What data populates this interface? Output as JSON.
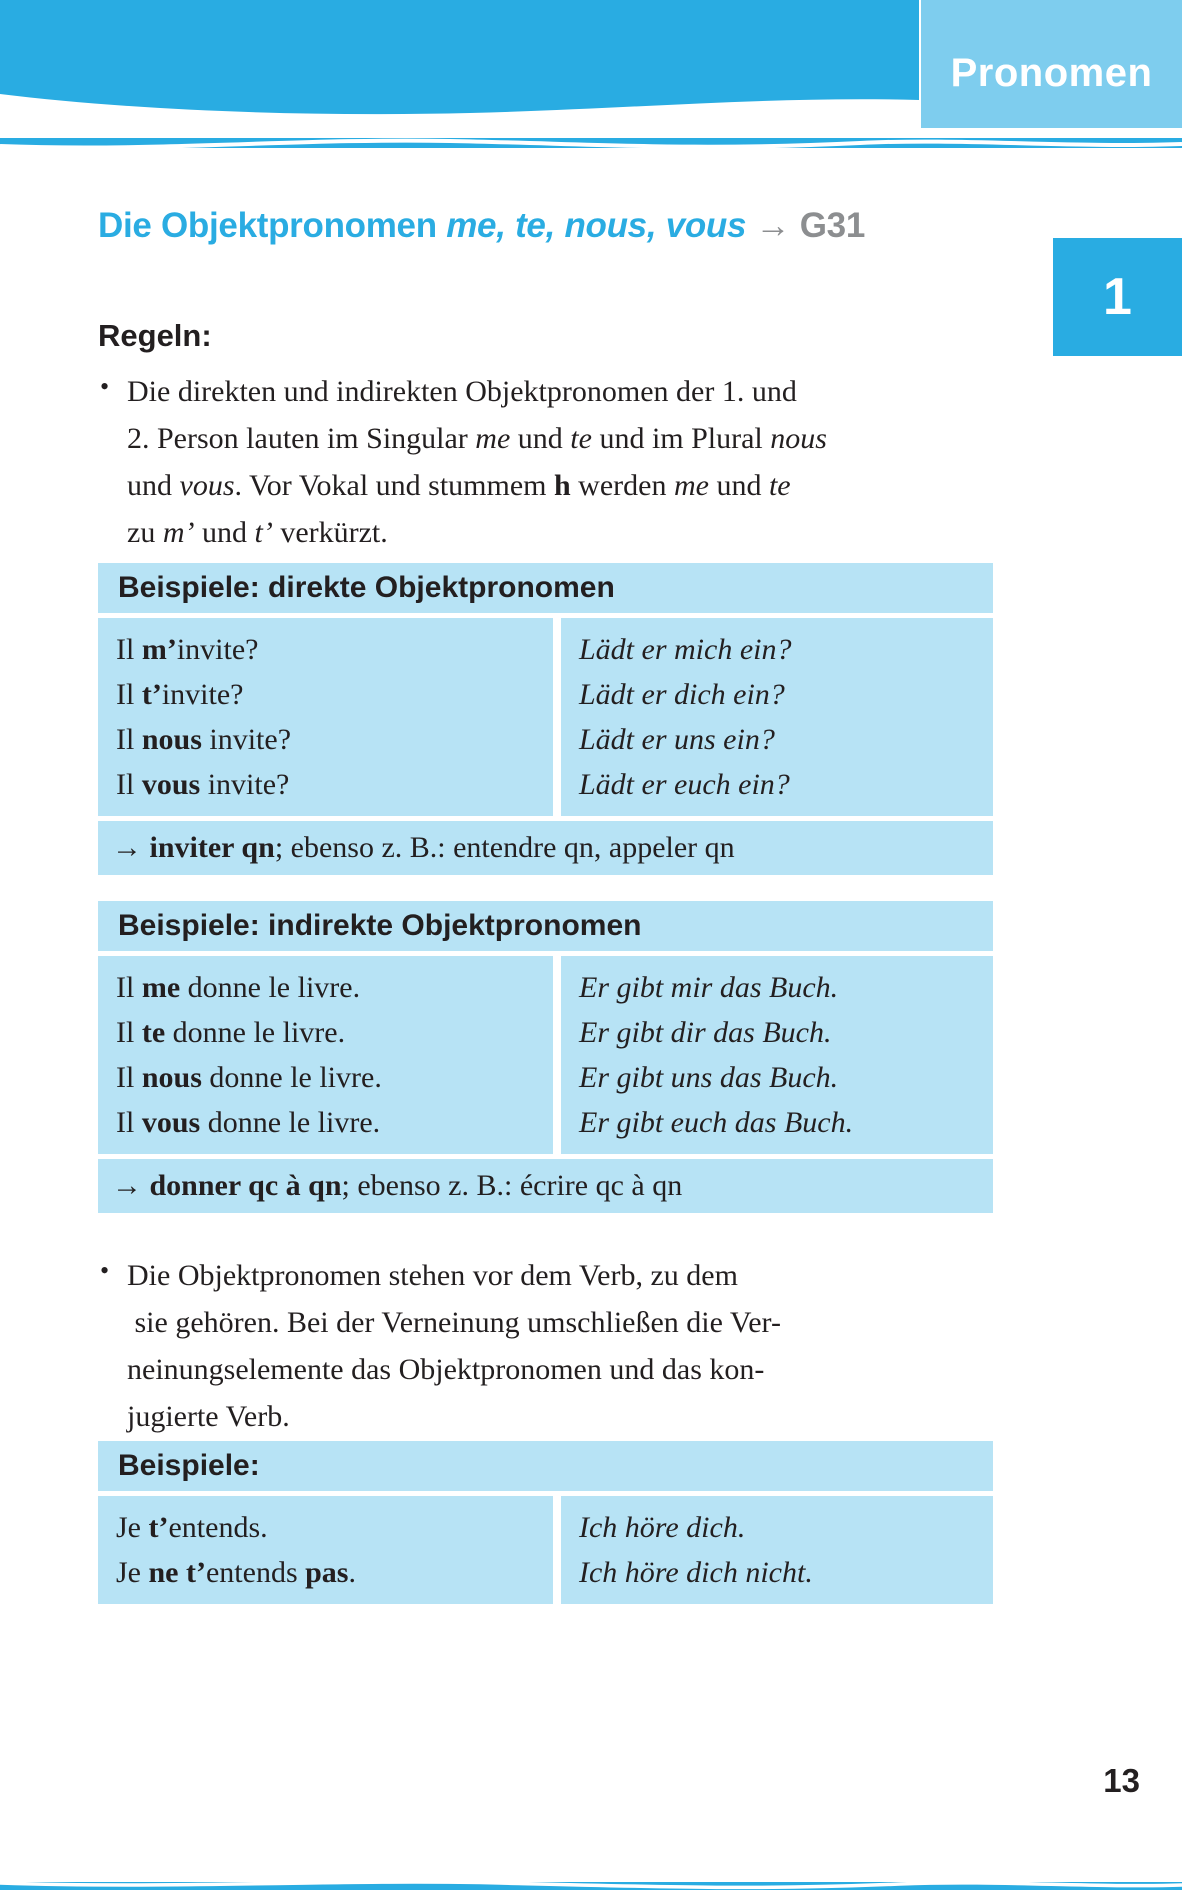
{
  "header": {
    "section_label": "Pronomen",
    "chapter_badge": "1"
  },
  "title": {
    "text": "Die Objektpronomen ",
    "pronouns": "me, te, nous, vous ",
    "arrow": "→ ",
    "grammar_ref": "G31"
  },
  "rules": {
    "heading": "Regeln:",
    "bullet_glyph": "•",
    "bullet1_lines": [
      [
        {
          "t": "Die direkten und indirekten Objektpronomen der 1. und"
        }
      ],
      [
        {
          "t": "2. Person lauten im Singular "
        },
        {
          "t": "me",
          "i": true
        },
        {
          "t": " und "
        },
        {
          "t": "te",
          "i": true
        },
        {
          "t": " und im Plural "
        },
        {
          "t": "nous",
          "i": true
        }
      ],
      [
        {
          "t": "und "
        },
        {
          "t": "vous",
          "i": true
        },
        {
          "t": ". Vor Vokal und stummem "
        },
        {
          "t": "h",
          "b": true
        },
        {
          "t": " werden "
        },
        {
          "t": "me",
          "i": true
        },
        {
          "t": " und "
        },
        {
          "t": "te",
          "i": true
        }
      ],
      [
        {
          "t": "zu "
        },
        {
          "t": "m’",
          "i": true
        },
        {
          "t": " und "
        },
        {
          "t": "t’",
          "i": true
        },
        {
          "t": " verkürzt."
        }
      ]
    ],
    "bullet2_lines": [
      [
        {
          "t": "Die Objektpronomen stehen vor dem Verb, zu dem"
        }
      ],
      [
        {
          "t": " sie gehören. Bei der Verneinung umschließen die Ver-"
        }
      ],
      [
        {
          "t": "neinungselemente das Objektpronomen und das kon-"
        }
      ],
      [
        {
          "t": "jugierte Verb."
        }
      ]
    ]
  },
  "boxes": [
    {
      "header": "Beispiele: direkte Objektpronomen",
      "rows": [
        {
          "fr": [
            {
              "t": "Il "
            },
            {
              "t": "m’",
              "b": true
            },
            {
              "t": "invite?"
            }
          ],
          "de": "Lädt er mich ein?"
        },
        {
          "fr": [
            {
              "t": "Il "
            },
            {
              "t": "t’",
              "b": true
            },
            {
              "t": "invite?"
            }
          ],
          "de": "Lädt er dich ein?"
        },
        {
          "fr": [
            {
              "t": "Il "
            },
            {
              "t": "nous",
              "b": true
            },
            {
              "t": " invite?"
            }
          ],
          "de": "Lädt er uns ein?"
        },
        {
          "fr": [
            {
              "t": "Il "
            },
            {
              "t": "vous",
              "b": true
            },
            {
              "t": " invite?"
            }
          ],
          "de": "Lädt er euch ein?"
        }
      ],
      "footer": [
        {
          "t": "→ "
        },
        {
          "t": "inviter qn",
          "b": true
        },
        {
          "t": "; ebenso z. B.: entendre qn, appeler qn"
        }
      ]
    },
    {
      "header": "Beispiele: indirekte Objektpronomen",
      "rows": [
        {
          "fr": [
            {
              "t": "Il "
            },
            {
              "t": "me",
              "b": true
            },
            {
              "t": " donne le livre."
            }
          ],
          "de": "Er gibt mir das Buch."
        },
        {
          "fr": [
            {
              "t": "Il "
            },
            {
              "t": "te",
              "b": true
            },
            {
              "t": " donne le livre."
            }
          ],
          "de": "Er gibt dir das Buch."
        },
        {
          "fr": [
            {
              "t": "Il "
            },
            {
              "t": "nous",
              "b": true
            },
            {
              "t": " donne le livre."
            }
          ],
          "de": "Er gibt uns das Buch."
        },
        {
          "fr": [
            {
              "t": "Il "
            },
            {
              "t": "vous",
              "b": true
            },
            {
              "t": " donne le livre."
            }
          ],
          "de": "Er gibt euch das Buch."
        }
      ],
      "footer": [
        {
          "t": "→ "
        },
        {
          "t": "donner qc à qn",
          "b": true
        },
        {
          "t": "; ebenso z. B.: écrire qc à qn"
        }
      ]
    },
    {
      "header": "Beispiele:",
      "rows": [
        {
          "fr": [
            {
              "t": "Je "
            },
            {
              "t": "t’",
              "b": true
            },
            {
              "t": "entends."
            }
          ],
          "de": "Ich höre dich."
        },
        {
          "fr": [
            {
              "t": "Je "
            },
            {
              "t": "ne t’",
              "b": true
            },
            {
              "t": "entends "
            },
            {
              "t": "pas",
              "b": true
            },
            {
              "t": "."
            }
          ],
          "de": "Ich höre dich nicht."
        }
      ],
      "footer": null
    }
  ],
  "page_number": "13",
  "colors": {
    "accent_cyan": "#29ace2",
    "tab_blue": "#7ecdee",
    "box_blue": "#b7e3f5",
    "ref_gray": "#8c8e90",
    "text_black": "#231f20"
  }
}
